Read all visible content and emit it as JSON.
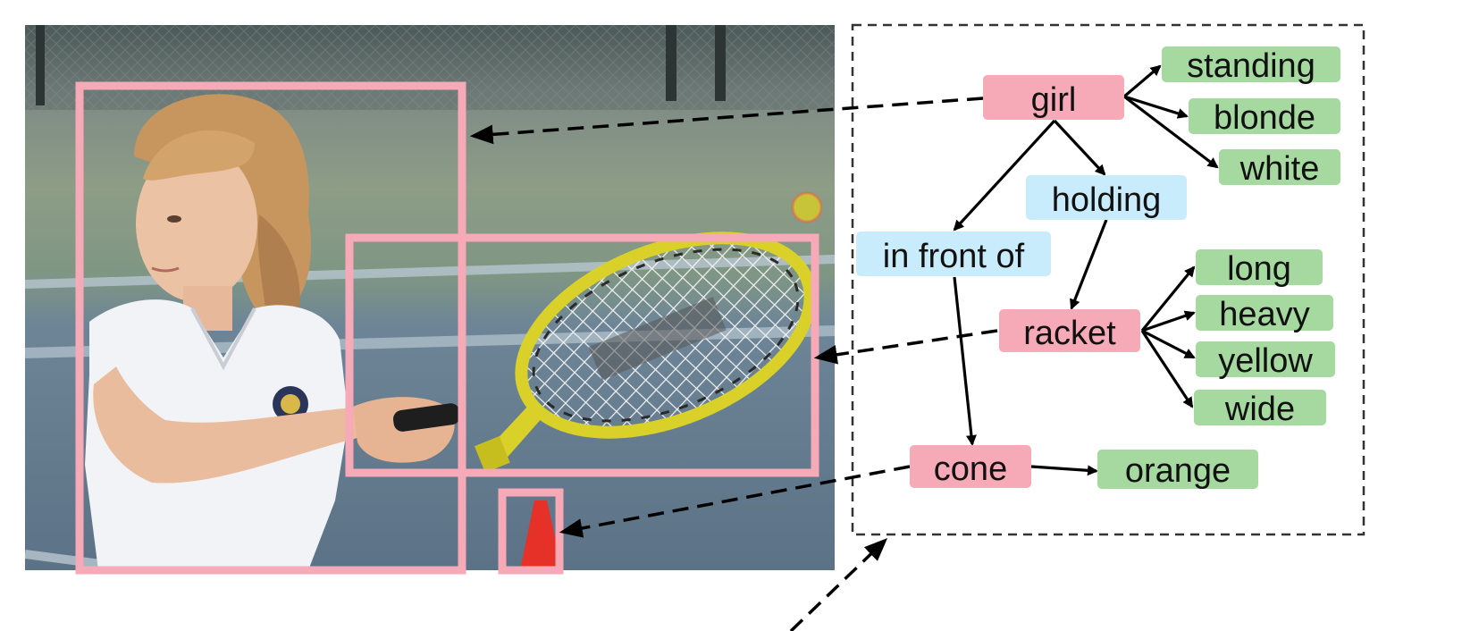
{
  "colors": {
    "object": "#f6a9b6",
    "relation": "#c8ecfb",
    "attribute": "#a6d9a0",
    "box": "#f6a9b6"
  },
  "nodes": {
    "girl": "girl",
    "standing": "standing",
    "blonde": "blonde",
    "white": "white",
    "holding": "holding",
    "in_front_of": "in front of",
    "racket": "racket",
    "long": "long",
    "heavy": "heavy",
    "yellow": "yellow",
    "wide": "wide",
    "cone": "cone",
    "orange": "orange"
  }
}
